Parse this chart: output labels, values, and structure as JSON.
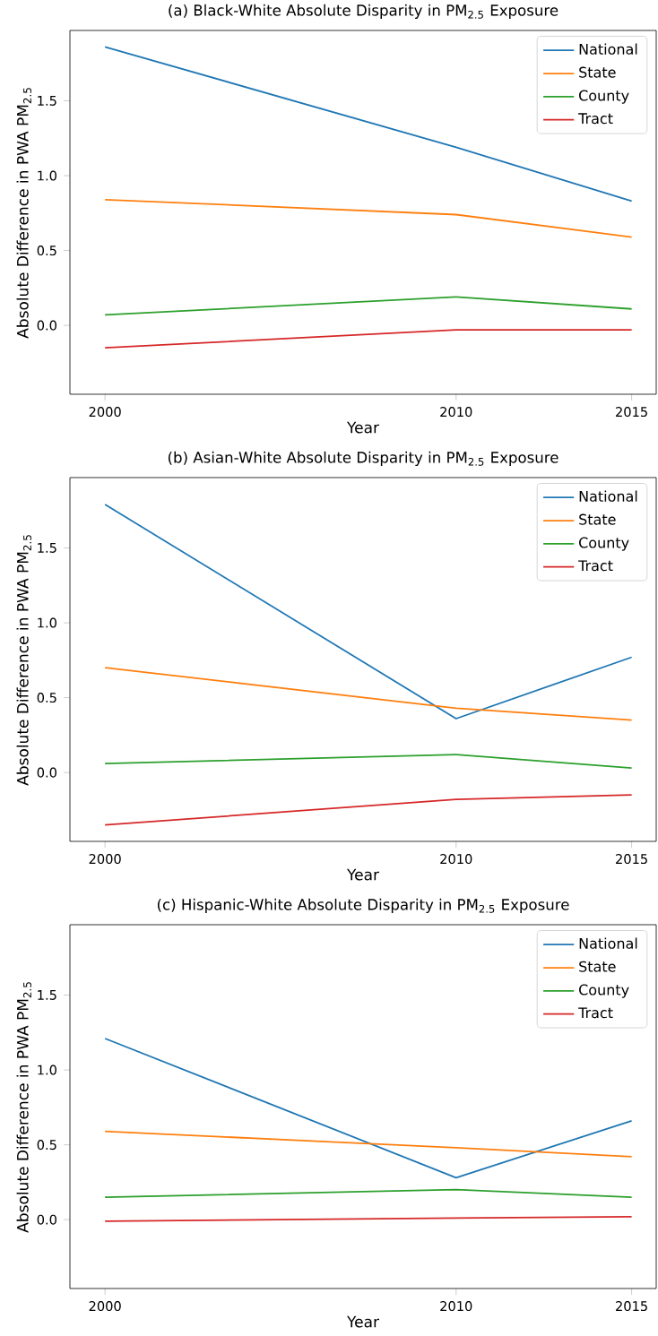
{
  "chart_data": [
    {
      "type": "line",
      "title": "(a) Black-White Absolute Disparity in PM$_{2.5}$ Exposure",
      "xlabel": "Year",
      "ylabel": "Absolute Difference in PWA PM$_{2.5}$",
      "x": [
        2000,
        2010,
        2015
      ],
      "series": [
        {
          "name": "National",
          "color": "#1f77b4",
          "values": [
            1.86,
            1.19,
            0.83
          ]
        },
        {
          "name": "State",
          "color": "#ff7f0e",
          "values": [
            0.84,
            0.74,
            0.59
          ]
        },
        {
          "name": "County",
          "color": "#2ca02c",
          "values": [
            0.07,
            0.19,
            0.11
          ]
        },
        {
          "name": "Tract",
          "color": "#d62728",
          "values": [
            -0.15,
            -0.03,
            -0.03
          ]
        }
      ],
      "xlim": [
        1999.0,
        2015.7
      ],
      "ylim": [
        -0.46,
        1.97
      ],
      "xticks": [
        2000,
        2010,
        2015
      ],
      "yticks": [
        {
          "value": 0,
          "label": "0.0"
        },
        {
          "value": 0.5,
          "label": "0.5"
        },
        {
          "value": 1,
          "label": "1.0"
        },
        {
          "value": 1.5,
          "label": "1.5"
        }
      ],
      "legend": "top right"
    },
    {
      "type": "line",
      "title": "(b) Asian-White Absolute Disparity in PM$_{2.5}$ Exposure",
      "xlabel": "Year",
      "ylabel": "Absolute Difference in PWA PM$_{2.5}$",
      "x": [
        2000,
        2010,
        2015
      ],
      "series": [
        {
          "name": "National",
          "color": "#1f77b4",
          "values": [
            1.79,
            0.36,
            0.77
          ]
        },
        {
          "name": "State",
          "color": "#ff7f0e",
          "values": [
            0.7,
            0.43,
            0.35
          ]
        },
        {
          "name": "County",
          "color": "#2ca02c",
          "values": [
            0.06,
            0.12,
            0.03
          ]
        },
        {
          "name": "Tract",
          "color": "#d62728",
          "values": [
            -0.35,
            -0.18,
            -0.15
          ]
        }
      ],
      "xlim": [
        1999.0,
        2015.7
      ],
      "ylim": [
        -0.46,
        1.97
      ],
      "xticks": [
        2000,
        2010,
        2015
      ],
      "yticks": [
        {
          "value": 0,
          "label": "0.0"
        },
        {
          "value": 0.5,
          "label": "0.5"
        },
        {
          "value": 1,
          "label": "1.0"
        },
        {
          "value": 1.5,
          "label": "1.5"
        }
      ],
      "legend": "top right"
    },
    {
      "type": "line",
      "title": "(c) Hispanic-White Absolute Disparity in PM$_{2.5}$ Exposure",
      "xlabel": "Year",
      "ylabel": "Absolute Difference in PWA PM$_{2.5}$",
      "x": [
        2000,
        2010,
        2015
      ],
      "series": [
        {
          "name": "National",
          "color": "#1f77b4",
          "values": [
            1.21,
            0.28,
            0.66
          ]
        },
        {
          "name": "State",
          "color": "#ff7f0e",
          "values": [
            0.59,
            0.48,
            0.42
          ]
        },
        {
          "name": "County",
          "color": "#2ca02c",
          "values": [
            0.15,
            0.2,
            0.15
          ]
        },
        {
          "name": "Tract",
          "color": "#d62728",
          "values": [
            -0.01,
            0.01,
            0.02
          ]
        }
      ],
      "xlim": [
        1999.0,
        2015.7
      ],
      "ylim": [
        -0.46,
        1.97
      ],
      "xticks": [
        2000,
        2010,
        2015
      ],
      "yticks": [
        {
          "value": 0,
          "label": "0.0"
        },
        {
          "value": 0.5,
          "label": "0.5"
        },
        {
          "value": 1,
          "label": "1.0"
        },
        {
          "value": 1.5,
          "label": "1.5"
        }
      ],
      "legend": "top right"
    }
  ]
}
